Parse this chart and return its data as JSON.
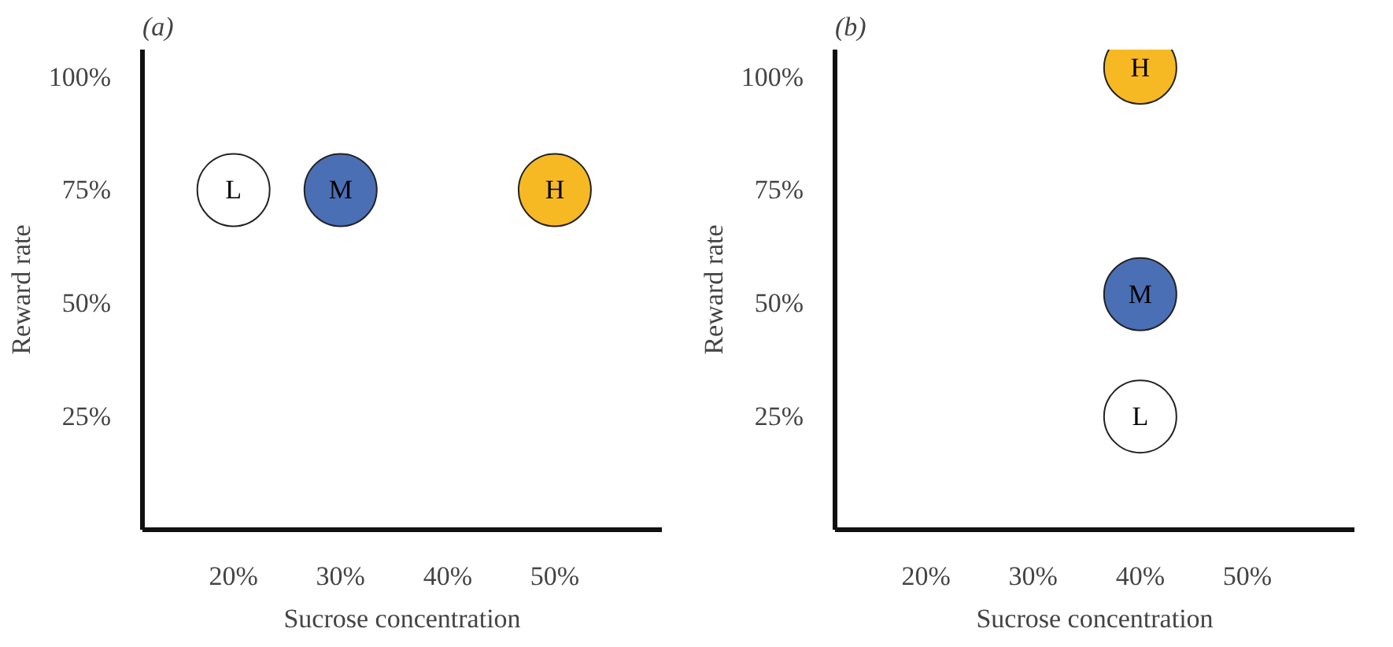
{
  "chart_data": [
    {
      "type": "scatter",
      "title": "(a)",
      "xlabel": "Sucrose concentration",
      "ylabel": "Reward rate",
      "marker": "circle",
      "xlim": [
        11.5,
        60
      ],
      "xticks": [
        {
          "value": 20,
          "label": "20%"
        },
        {
          "value": 30,
          "label": "30%"
        },
        {
          "value": 40,
          "label": "40%"
        },
        {
          "value": 50,
          "label": "50%"
        }
      ],
      "ylim": [
        0,
        106
      ],
      "yticks": [
        {
          "value": 25,
          "label": "25%"
        },
        {
          "value": 50,
          "label": "50%"
        },
        {
          "value": 75,
          "label": "75%"
        },
        {
          "value": 100,
          "label": "100%"
        }
      ],
      "series": [
        {
          "name": "L",
          "color": "#ffffff",
          "x": [
            20
          ],
          "values": [
            75
          ]
        },
        {
          "name": "M",
          "color": "#4a6fb5",
          "x": [
            30
          ],
          "values": [
            75
          ]
        },
        {
          "name": "H",
          "color": "#f7b923",
          "x": [
            50
          ],
          "values": [
            75
          ]
        }
      ]
    },
    {
      "type": "scatter",
      "title": "(b)",
      "xlabel": "Sucrose concentration",
      "ylabel": "Reward rate",
      "marker": "circle",
      "xlim": [
        11.5,
        60
      ],
      "xticks": [
        {
          "value": 20,
          "label": "20%"
        },
        {
          "value": 30,
          "label": "30%"
        },
        {
          "value": 40,
          "label": "40%"
        },
        {
          "value": 50,
          "label": "50%"
        }
      ],
      "ylim": [
        0,
        106
      ],
      "yticks": [
        {
          "value": 25,
          "label": "25%"
        },
        {
          "value": 50,
          "label": "50%"
        },
        {
          "value": 75,
          "label": "75%"
        },
        {
          "value": 100,
          "label": "100%"
        }
      ],
      "series": [
        {
          "name": "H",
          "color": "#f7b923",
          "x": [
            40
          ],
          "values": [
            102
          ]
        },
        {
          "name": "M",
          "color": "#4a6fb5",
          "x": [
            40
          ],
          "values": [
            52
          ]
        },
        {
          "name": "L",
          "color": "#ffffff",
          "x": [
            40
          ],
          "values": [
            25
          ]
        }
      ]
    }
  ]
}
